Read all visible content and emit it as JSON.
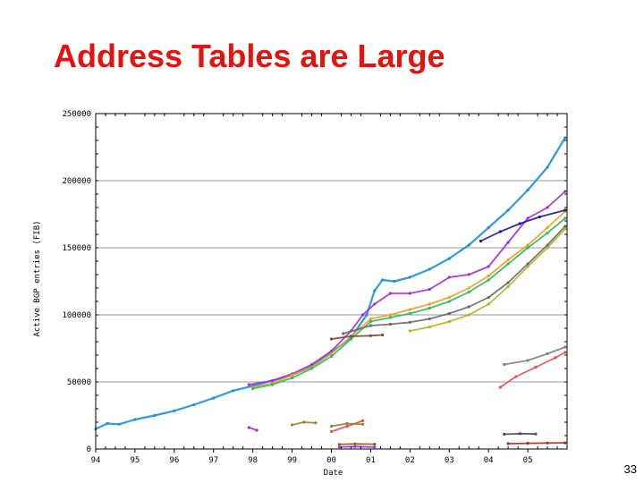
{
  "slide": {
    "title": "Address Tables are Large",
    "number": "33"
  },
  "chart_data": {
    "type": "scatter",
    "title": "",
    "xlabel": "Date",
    "ylabel": "Active BGP entries (FIB)",
    "xlim": [
      1994.0,
      2006.0
    ],
    "ylim": [
      0,
      250000
    ],
    "grid": true,
    "x_ticks": [
      "94",
      "95",
      "96",
      "97",
      "98",
      "99",
      "00",
      "01",
      "02",
      "03",
      "04",
      "05"
    ],
    "x_tick_values": [
      1994,
      1995,
      1996,
      1997,
      1998,
      1999,
      2000,
      2001,
      2002,
      2003,
      2004,
      2005
    ],
    "y_ticks": [
      "0",
      "50000",
      "100000",
      "150000",
      "200000",
      "250000"
    ],
    "y_tick_values": [
      0,
      50000,
      100000,
      150000,
      200000,
      250000
    ],
    "colors": {
      "grid": "#9a9a9a",
      "frame": "#000000",
      "main_series": "#1e8fd6"
    },
    "series": [
      {
        "color": "#1e8fd6",
        "x": [
          1994.0,
          1994.3,
          1994.6,
          1995.0,
          1995.5,
          1996.0,
          1996.5,
          1997.0,
          1997.5,
          1998.0,
          1998.5,
          1999.0,
          1999.5,
          2000.0,
          2000.5,
          2000.9,
          2001.1,
          2001.3,
          2001.6,
          2002.0,
          2002.5,
          2003.0,
          2003.5,
          2004.0,
          2004.5,
          2005.0,
          2005.5,
          2005.95
        ],
        "y": [
          15000,
          19000,
          18500,
          22000,
          25000,
          28500,
          33000,
          38000,
          43500,
          47000,
          51000,
          55000,
          62000,
          72000,
          83000,
          100000,
          118000,
          126000,
          125000,
          128000,
          134000,
          142000,
          152000,
          165000,
          178000,
          193000,
          210000,
          232000
        ]
      },
      {
        "color": "#9b30d8",
        "x": [
          1997.9,
          1998.5,
          1999.0,
          1999.5,
          2000.0,
          2000.5,
          2000.8,
          2001.1,
          2001.5,
          2002.0,
          2002.5,
          2003.0,
          2003.5,
          2004.0,
          2004.5,
          2005.0,
          2005.5,
          2005.95
        ],
        "y": [
          48000,
          51000,
          56000,
          63000,
          73000,
          88000,
          100000,
          108000,
          116000,
          116000,
          119000,
          128000,
          130000,
          136000,
          154000,
          172000,
          180000,
          192000
        ]
      },
      {
        "color": "#f0a020",
        "x": [
          1998.0,
          1998.5,
          1999.0,
          1999.5,
          2000.0,
          2000.5,
          2001.0,
          2001.5,
          2002.0,
          2002.5,
          2003.0,
          2003.5,
          2004.0,
          2004.5,
          2005.0,
          2005.5,
          2005.95
        ],
        "y": [
          46000,
          49000,
          55000,
          61000,
          71000,
          84000,
          97000,
          100000,
          104000,
          108000,
          113000,
          120000,
          129000,
          141000,
          152000,
          165000,
          177000
        ]
      },
      {
        "color": "#2fb860",
        "x": [
          1998.0,
          1998.5,
          1999.0,
          1999.5,
          2000.0,
          2000.5,
          2001.0,
          2001.5,
          2002.0,
          2002.5,
          2003.0,
          2003.5,
          2004.0,
          2004.5,
          2005.0,
          2005.5,
          2005.95
        ],
        "y": [
          45000,
          48000,
          53000,
          60000,
          69000,
          82000,
          95000,
          98000,
          101000,
          105000,
          110000,
          117000,
          126000,
          138000,
          150000,
          161000,
          172000
        ]
      },
      {
        "color": "#6a6a6a",
        "x": [
          2000.3,
          2001.0,
          2001.5,
          2002.0,
          2002.5,
          2003.0,
          2003.5,
          2004.0,
          2004.5,
          2005.0,
          2005.5,
          2005.95
        ],
        "y": [
          86000,
          92000,
          93000,
          94500,
          97000,
          101000,
          106000,
          113000,
          124000,
          138000,
          152000,
          166000
        ]
      },
      {
        "color": "#b8b020",
        "x": [
          2002.0,
          2002.5,
          2003.0,
          2003.5,
          2004.0,
          2004.5,
          2005.0,
          2005.5,
          2005.95
        ],
        "y": [
          88000,
          91000,
          95000,
          100000,
          108000,
          121000,
          136000,
          150000,
          164000
        ]
      },
      {
        "color": "#1a1a8a",
        "x": [
          2003.8,
          2004.3,
          2004.8,
          2005.3,
          2005.95
        ],
        "y": [
          155000,
          162000,
          168000,
          173000,
          178000
        ]
      },
      {
        "color": "#7a4a2a",
        "x": [
          2000.0,
          2000.5,
          2001.0,
          2001.3
        ],
        "y": [
          82000,
          84000,
          84500,
          85000
        ]
      },
      {
        "color": "#808080",
        "x": [
          2004.4,
          2005.0,
          2005.5,
          2005.95
        ],
        "y": [
          63000,
          66000,
          71000,
          76000
        ]
      },
      {
        "color": "#e05050",
        "x": [
          2004.3,
          2004.7,
          2005.2,
          2005.7,
          2005.95
        ],
        "y": [
          46000,
          54000,
          61000,
          68000,
          72000
        ]
      },
      {
        "color": "#e05050",
        "x": [
          2000.0,
          2000.4,
          2000.8
        ],
        "y": [
          13000,
          17000,
          21000
        ]
      },
      {
        "color": "#9b8030",
        "x": [
          1999.0,
          1999.3,
          1999.6
        ],
        "y": [
          18000,
          20000,
          19500
        ]
      },
      {
        "color": "#9b8030",
        "x": [
          2000.0,
          2000.4,
          2000.8
        ],
        "y": [
          17000,
          19000,
          18500
        ]
      },
      {
        "color": "#9b30d8",
        "x": [
          1997.9,
          1998.1
        ],
        "y": [
          16000,
          14000
        ]
      },
      {
        "color": "#9b30d8",
        "x": [
          2000.2,
          2000.6,
          2001.1
        ],
        "y": [
          1500,
          1800,
          1500
        ]
      },
      {
        "color": "#8b5a2b",
        "x": [
          2000.2,
          2000.6,
          2001.1
        ],
        "y": [
          3500,
          3800,
          3600
        ]
      },
      {
        "color": "#a03020",
        "x": [
          2004.5,
          2005.0,
          2005.5,
          2005.95
        ],
        "y": [
          4000,
          4300,
          4500,
          4600
        ]
      },
      {
        "color": "#4a4a4a",
        "x": [
          2004.4,
          2004.8,
          2005.2
        ],
        "y": [
          11000,
          11500,
          11200
        ]
      }
    ]
  }
}
